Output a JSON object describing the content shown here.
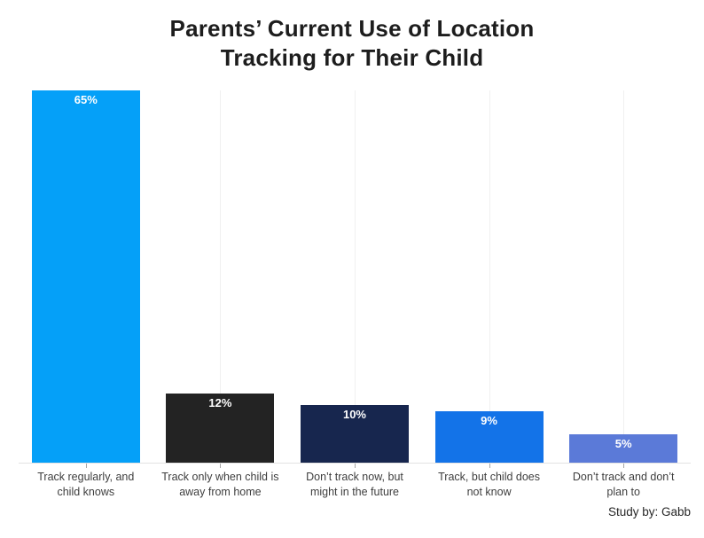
{
  "chart_data": {
    "type": "bar",
    "title_lines": [
      "Parents’ Current Use of Location",
      "Tracking for Their Child"
    ],
    "categories": [
      [
        "Track regularly, and",
        "child knows"
      ],
      [
        "Track only when child is",
        "away from home"
      ],
      [
        "Don’t track now, but",
        "might in the future"
      ],
      [
        "Track, but child does",
        "not know"
      ],
      [
        "Don’t track and don’t",
        "plan to"
      ]
    ],
    "values": [
      65,
      12,
      10,
      9,
      5
    ],
    "value_labels": [
      "65%",
      "12%",
      "10%",
      "9%",
      "5%"
    ],
    "bar_colors": [
      "#05A0F8",
      "#232323",
      "#17264E",
      "#1373E8",
      "#5B7AD8"
    ],
    "ylim": [
      0,
      65
    ],
    "xlabel": "",
    "ylabel": "",
    "legend": "none",
    "grid": "vertical gridlines at category centers, light gray",
    "source": "Study by: Gabb"
  },
  "colors": {
    "background": "#FFFFFF",
    "title_text": "#1D1D1D",
    "category_label_text": "#3E3E3E",
    "value_label_text": "#FFFFFF",
    "gridline": "#F0F0F0",
    "axis_line": "#E3E3E3",
    "tick": "#A6A6A6",
    "source_text": "#262626"
  }
}
